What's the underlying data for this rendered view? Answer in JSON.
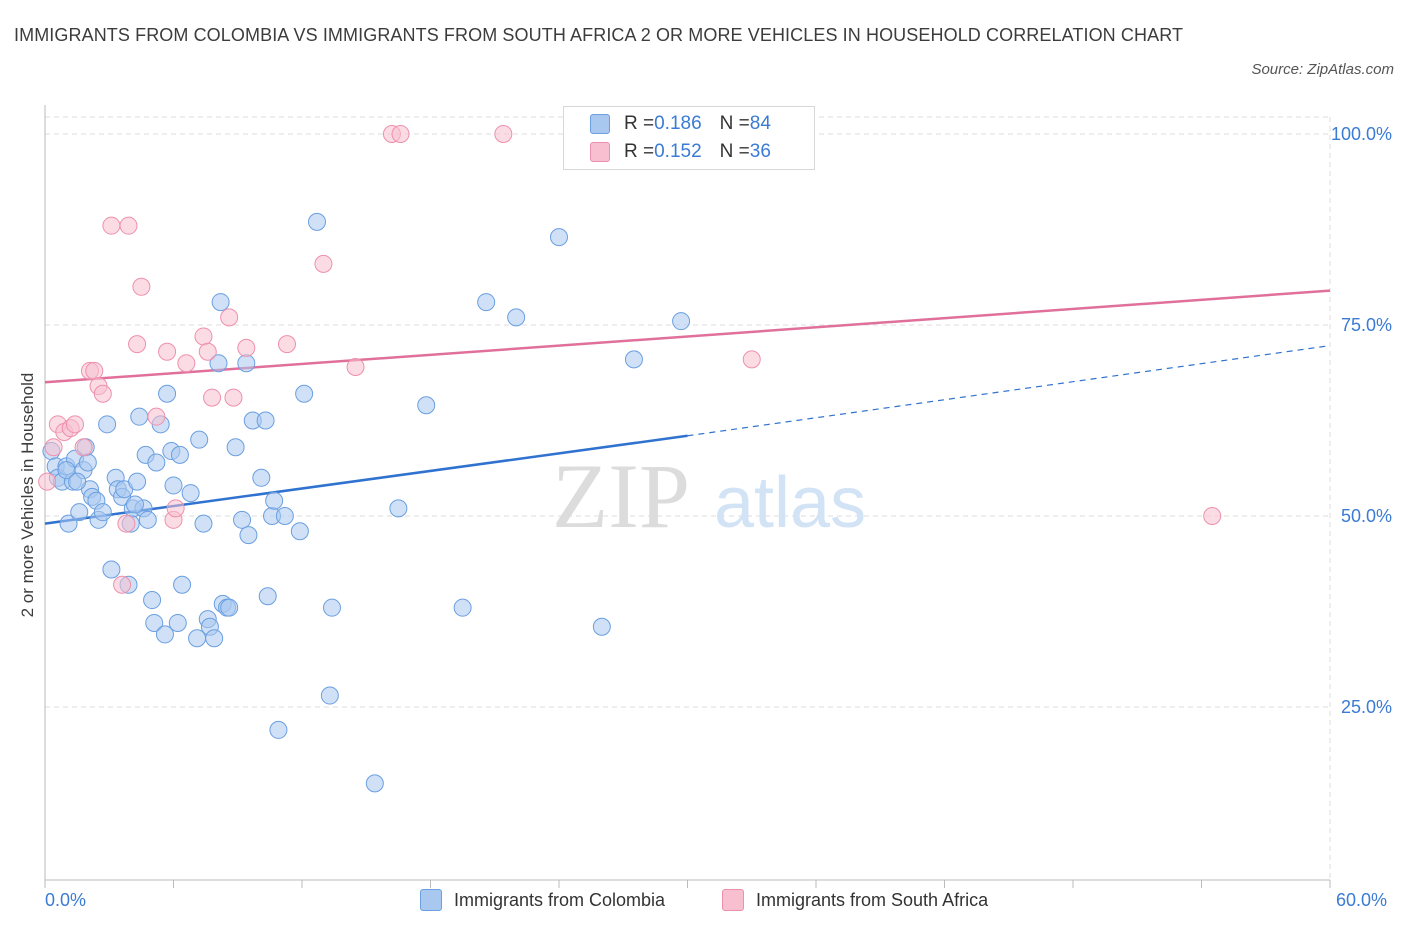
{
  "title": "IMMIGRANTS FROM COLOMBIA VS IMMIGRANTS FROM SOUTH AFRICA 2 OR MORE VEHICLES IN HOUSEHOLD CORRELATION CHART",
  "source": "Source: ZipAtlas.com",
  "watermark": {
    "zip": "ZIP",
    "atlas": "atlas"
  },
  "legend_top": [
    {
      "r_label": "R = ",
      "r_value": "0.186",
      "n_label": "N = ",
      "n_value": "84"
    },
    {
      "r_label": "R = ",
      "r_value": "0.152",
      "n_label": "N = ",
      "n_value": "36"
    }
  ],
  "colors": {
    "colombia_fill": "#a9c8f0",
    "colombia_stroke": "#6a9fe0",
    "colombia_line": "#2f72cf",
    "sa_fill": "#f7bfd0",
    "sa_stroke": "#ee90ad",
    "sa_line": "#e0709a",
    "axis_label": "#3a7bd5",
    "grid": "#dedede"
  },
  "chart_data": {
    "type": "scatter",
    "title": "IMMIGRANTS FROM COLOMBIA VS IMMIGRANTS FROM SOUTH AFRICA 2 OR MORE VEHICLES IN HOUSEHOLD CORRELATION CHART",
    "xlabel": "",
    "ylabel": "2 or more Vehicles in Household",
    "xlim": [
      0,
      60
    ],
    "ylim": [
      0,
      100
    ],
    "x_tick_labels": [
      "0.0%",
      "60.0%"
    ],
    "y_ticks": [
      25,
      50,
      75,
      100
    ],
    "y_tick_labels": [
      "25.0%",
      "50.0%",
      "75.0%",
      "100.0%"
    ],
    "grid": true,
    "legend_position": "bottom",
    "series": [
      {
        "name": "Immigrants from Colombia",
        "r": 0.186,
        "n": 84,
        "trend": {
          "x0": 0,
          "y0": 49.0,
          "x1": 30,
          "y1": 60.5,
          "dashed_to_x": 60,
          "dashed_to_y": 72.3
        },
        "points": [
          [
            0.3,
            58.5
          ],
          [
            0.5,
            56.5
          ],
          [
            0.6,
            55.0
          ],
          [
            0.8,
            54.5
          ],
          [
            1.0,
            56.5
          ],
          [
            1.1,
            49.0
          ],
          [
            1.3,
            54.5
          ],
          [
            1.4,
            57.5
          ],
          [
            1.6,
            50.5
          ],
          [
            1.8,
            56.0
          ],
          [
            1.9,
            59.0
          ],
          [
            2.1,
            53.5
          ],
          [
            2.2,
            52.5
          ],
          [
            2.4,
            52.0
          ],
          [
            2.5,
            49.5
          ],
          [
            2.7,
            50.5
          ],
          [
            2.9,
            62.0
          ],
          [
            3.1,
            43.0
          ],
          [
            3.3,
            55.0
          ],
          [
            3.4,
            53.5
          ],
          [
            3.6,
            52.5
          ],
          [
            3.7,
            53.5
          ],
          [
            3.9,
            41.0
          ],
          [
            4.0,
            49.0
          ],
          [
            4.1,
            51.0
          ],
          [
            4.3,
            54.5
          ],
          [
            4.4,
            63.0
          ],
          [
            4.6,
            51.0
          ],
          [
            4.7,
            58.0
          ],
          [
            4.8,
            49.5
          ],
          [
            5.0,
            39.0
          ],
          [
            5.1,
            36.0
          ],
          [
            5.2,
            57.0
          ],
          [
            5.4,
            62.0
          ],
          [
            5.6,
            34.5
          ],
          [
            5.7,
            66.0
          ],
          [
            5.9,
            58.5
          ],
          [
            6.0,
            54.0
          ],
          [
            6.2,
            36.0
          ],
          [
            6.3,
            58.0
          ],
          [
            6.4,
            41.0
          ],
          [
            6.8,
            53.0
          ],
          [
            7.1,
            34.0
          ],
          [
            7.2,
            60.0
          ],
          [
            7.4,
            49.0
          ],
          [
            7.6,
            36.5
          ],
          [
            7.7,
            35.5
          ],
          [
            7.9,
            34.0
          ],
          [
            8.1,
            70.0
          ],
          [
            8.2,
            78.0
          ],
          [
            8.3,
            38.5
          ],
          [
            8.5,
            38.0
          ],
          [
            8.6,
            38.0
          ],
          [
            8.9,
            59.0
          ],
          [
            9.2,
            49.5
          ],
          [
            9.4,
            70.0
          ],
          [
            9.5,
            47.5
          ],
          [
            9.7,
            62.5
          ],
          [
            10.1,
            55.0
          ],
          [
            10.3,
            62.5
          ],
          [
            10.4,
            39.5
          ],
          [
            10.6,
            50.0
          ],
          [
            10.7,
            52.0
          ],
          [
            10.9,
            22.0
          ],
          [
            11.2,
            50.0
          ],
          [
            11.9,
            48.0
          ],
          [
            12.1,
            66.0
          ],
          [
            12.7,
            88.5
          ],
          [
            13.3,
            26.5
          ],
          [
            13.4,
            38.0
          ],
          [
            15.4,
            15.0
          ],
          [
            16.5,
            51.0
          ],
          [
            17.8,
            64.5
          ],
          [
            19.5,
            38.0
          ],
          [
            20.6,
            78.0
          ],
          [
            22.0,
            76.0
          ],
          [
            24.0,
            86.5
          ],
          [
            26.0,
            35.5
          ],
          [
            27.5,
            70.5
          ],
          [
            29.7,
            75.5
          ],
          [
            1.0,
            56.0
          ],
          [
            1.5,
            54.5
          ],
          [
            2.0,
            57.0
          ],
          [
            4.2,
            51.5
          ]
        ]
      },
      {
        "name": "Immigrants from South Africa",
        "r": 0.152,
        "n": 36,
        "trend": {
          "x0": 0,
          "y0": 67.5,
          "x1": 60,
          "y1": 79.5
        },
        "points": [
          [
            0.1,
            54.5
          ],
          [
            0.4,
            59.0
          ],
          [
            0.6,
            62.0
          ],
          [
            0.9,
            61.0
          ],
          [
            1.2,
            61.5
          ],
          [
            1.4,
            62.0
          ],
          [
            1.8,
            59.0
          ],
          [
            2.1,
            69.0
          ],
          [
            2.3,
            69.0
          ],
          [
            2.5,
            67.0
          ],
          [
            2.7,
            66.0
          ],
          [
            3.1,
            88.0
          ],
          [
            3.6,
            41.0
          ],
          [
            3.8,
            49.0
          ],
          [
            3.9,
            88.0
          ],
          [
            4.3,
            72.5
          ],
          [
            4.5,
            80.0
          ],
          [
            5.2,
            63.0
          ],
          [
            5.7,
            71.5
          ],
          [
            6.0,
            49.5
          ],
          [
            6.1,
            51.0
          ],
          [
            6.6,
            70.0
          ],
          [
            7.4,
            73.5
          ],
          [
            7.6,
            71.5
          ],
          [
            7.8,
            65.5
          ],
          [
            8.6,
            76.0
          ],
          [
            8.8,
            65.5
          ],
          [
            9.4,
            72.0
          ],
          [
            11.3,
            72.5
          ],
          [
            13.0,
            83.0
          ],
          [
            14.5,
            69.5
          ],
          [
            16.2,
            100.0
          ],
          [
            16.6,
            100.0
          ],
          [
            21.4,
            100.0
          ],
          [
            33.0,
            70.5
          ],
          [
            54.5,
            50.0
          ]
        ]
      }
    ]
  },
  "legend_bottom": [
    {
      "label": "Immigrants from Colombia"
    },
    {
      "label": "Immigrants from South Africa"
    }
  ],
  "x_axis_labels": {
    "left": "0.0%",
    "right": "60.0%"
  }
}
